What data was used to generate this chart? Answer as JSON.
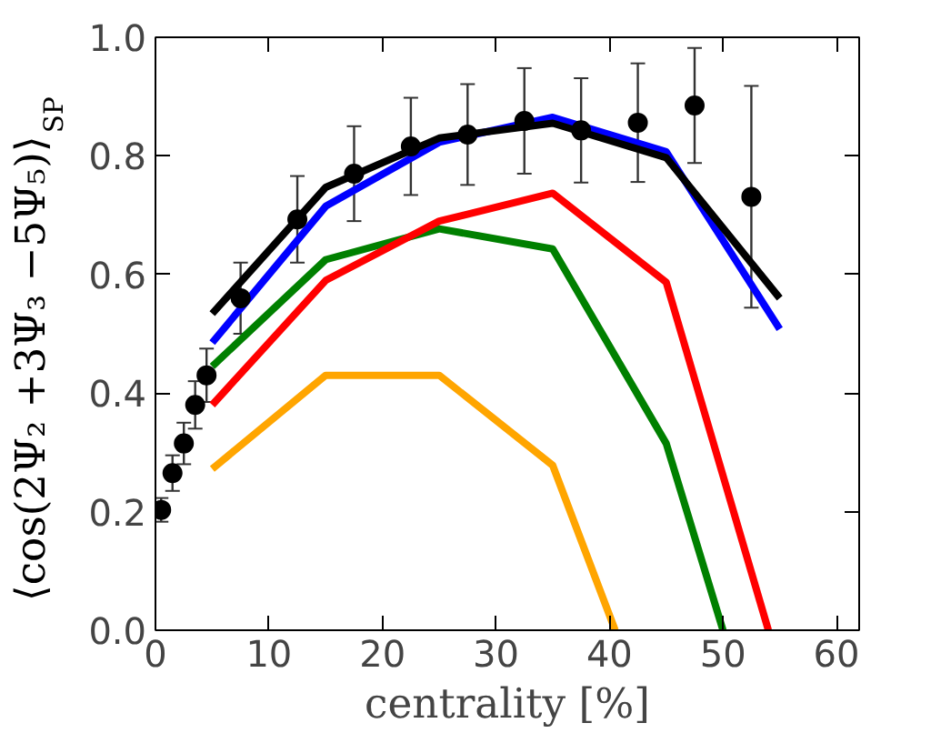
{
  "chart_data": {
    "type": "line",
    "xlabel": "centrality [%]",
    "ylabel": "⟨cos(2Ψ₂ +3Ψ₃ −5Ψ₅)⟩$_{SP}$",
    "xlim": [
      0,
      62
    ],
    "ylim": [
      0,
      1.0
    ],
    "xticks": [
      0,
      10,
      20,
      30,
      40,
      50,
      60
    ],
    "yticks": [
      {
        "value": 0,
        "label": "0.0"
      },
      0.2,
      0.4,
      0.6,
      0.8,
      {
        "value": 1,
        "label": "1.0"
      }
    ],
    "grid": false,
    "line_style": "solid",
    "marker": "none",
    "series": [
      {
        "color": "#ffa500",
        "x": [
          5,
          15,
          25,
          35,
          40.5
        ],
        "values": [
          0.272,
          0.43,
          0.43,
          0.278,
          0
        ]
      },
      {
        "color": "#008000",
        "x": [
          5,
          15,
          25,
          35,
          45,
          50
        ],
        "values": [
          0.445,
          0.625,
          0.677,
          0.643,
          0.315,
          0
        ]
      },
      {
        "color": "#ff0000",
        "x": [
          5,
          15,
          25,
          35,
          45,
          54
        ],
        "values": [
          0.38,
          0.59,
          0.69,
          0.737,
          0.587,
          0
        ]
      },
      {
        "color": "#0000ff",
        "x": [
          5,
          15,
          25,
          35,
          45,
          55
        ],
        "values": [
          0.485,
          0.715,
          0.823,
          0.865,
          0.807,
          0.508
        ]
      },
      {
        "color": "#000000",
        "x": [
          5,
          15,
          25,
          35,
          45,
          55
        ],
        "values": [
          0.534,
          0.747,
          0.83,
          0.855,
          0.797,
          0.56
        ]
      },
      {
        "type": "scatter",
        "marker": "circle",
        "color": "#000000",
        "x": [
          0.5,
          1.5,
          2.5,
          3.5,
          4.5,
          7.5,
          12.5,
          17.5,
          22.5,
          27.5,
          32.5,
          37.5,
          42.5,
          47.5,
          52.5
        ],
        "values": [
          0.203,
          0.265,
          0.315,
          0.38,
          0.43,
          0.56,
          0.693,
          0.77,
          0.816,
          0.836,
          0.859,
          0.843,
          0.856,
          0.885,
          0.731
        ],
        "errors": [
          0.02,
          0.03,
          0.035,
          0.04,
          0.045,
          0.06,
          0.073,
          0.08,
          0.082,
          0.085,
          0.089,
          0.088,
          0.1,
          0.097,
          0.187
        ]
      }
    ]
  }
}
